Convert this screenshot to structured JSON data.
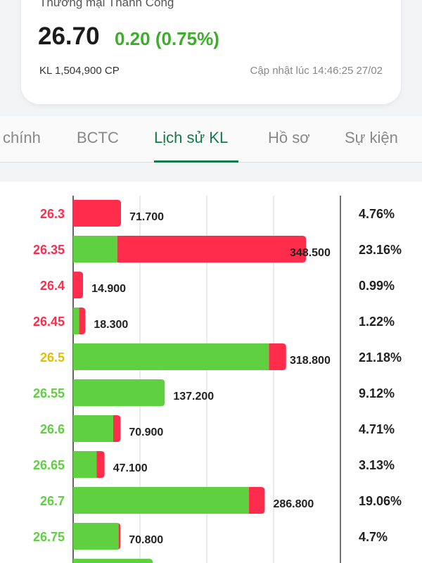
{
  "header": {
    "company": "Thương mại Thành Công",
    "price": "26.70",
    "change": "0.20 (0.75%)",
    "volume": "KL 1,504,900 CP",
    "updated": "Cập nhật lúc 14:46:25 27/02"
  },
  "tabs": [
    {
      "label": "chính"
    },
    {
      "label": "BCTC"
    },
    {
      "label": "Lịch sử KL",
      "active": true
    },
    {
      "label": "Hồ sơ"
    },
    {
      "label": "Sự kiện"
    }
  ],
  "colors": {
    "buy": "#5fd040",
    "sell": "#ff2d4b",
    "up": "#5fd040",
    "down": "#ff2d4b",
    "ref": "#e6be00",
    "accent": "#157a4a"
  },
  "chart_data": {
    "type": "bar",
    "orientation": "horizontal-stacked",
    "xlim": [
      0,
      400000
    ],
    "grid": true,
    "rows": [
      {
        "price": "26.3",
        "price_color": "down",
        "buy": 0,
        "sell": 71700,
        "label": "71.700",
        "pct": "4.76%"
      },
      {
        "price": "26.35",
        "price_color": "down",
        "buy": 66000,
        "sell": 282500,
        "label": "348.500",
        "pct": "23.16%"
      },
      {
        "price": "26.4",
        "price_color": "down",
        "buy": 0,
        "sell": 14900,
        "label": "14.900",
        "pct": "0.99%"
      },
      {
        "price": "26.45",
        "price_color": "down",
        "buy": 9000,
        "sell": 9300,
        "label": "18.300",
        "pct": "1.22%"
      },
      {
        "price": "26.5",
        "price_color": "ref",
        "buy": 293000,
        "sell": 25800,
        "label": "318.800",
        "pct": "21.18%"
      },
      {
        "price": "26.55",
        "price_color": "up",
        "buy": 137200,
        "sell": 0,
        "label": "137.200",
        "pct": "9.12%"
      },
      {
        "price": "26.6",
        "price_color": "up",
        "buy": 60000,
        "sell": 10900,
        "label": "70.900",
        "pct": "4.71%"
      },
      {
        "price": "26.65",
        "price_color": "up",
        "buy": 35000,
        "sell": 12100,
        "label": "47.100",
        "pct": "3.13%"
      },
      {
        "price": "26.7",
        "price_color": "up",
        "buy": 263000,
        "sell": 23800,
        "label": "286.800",
        "pct": "19.06%"
      },
      {
        "price": "26.75",
        "price_color": "up",
        "buy": 68000,
        "sell": 2800,
        "label": "70.800",
        "pct": "4.7%"
      },
      {
        "price": "",
        "price_color": "up",
        "buy": 119000,
        "sell": 0,
        "label": "",
        "pct": ""
      }
    ]
  }
}
